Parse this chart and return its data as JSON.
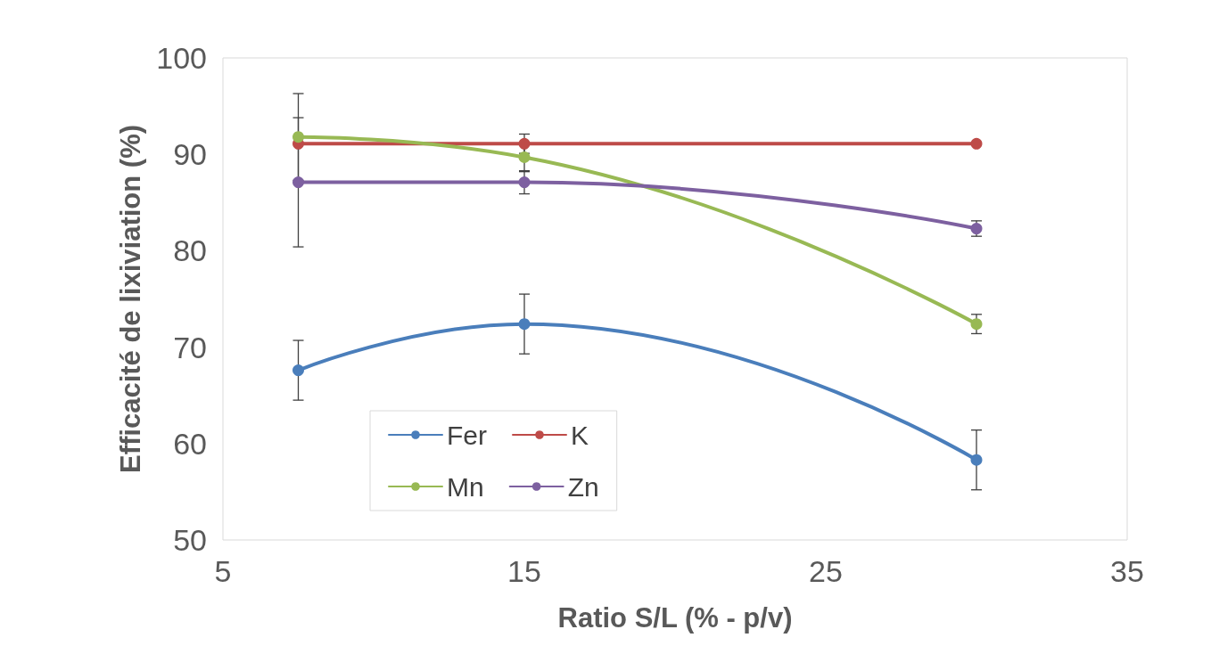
{
  "chart_data": {
    "type": "line",
    "xlabel": "Ratio S/L (% - p/v)",
    "ylabel": "Efficacité de lixiviation (%)",
    "x": [
      7.5,
      15,
      30
    ],
    "series": [
      {
        "name": "Fer",
        "color": "#4a7ebb",
        "values": [
          67.6,
          72.4,
          58.3
        ],
        "errors": [
          3.1,
          3.1,
          3.1
        ]
      },
      {
        "name": "K",
        "color": "#be4b48",
        "values": [
          91.1,
          91.1,
          91.1
        ],
        "errors": [
          null,
          1.0,
          null
        ]
      },
      {
        "name": "Mn",
        "color": "#98b954",
        "values": [
          91.8,
          89.7,
          72.4
        ],
        "errors": [
          4.5,
          1.5,
          1.0
        ]
      },
      {
        "name": "Zn",
        "color": "#7d60a0",
        "values": [
          87.1,
          87.1,
          82.3
        ],
        "errors": [
          6.7,
          1.2,
          0.8
        ]
      }
    ],
    "xlim": [
      5,
      35
    ],
    "xticks": [
      5,
      15,
      25,
      35
    ],
    "ylim": [
      50,
      100
    ],
    "yticks": [
      50,
      60,
      70,
      80,
      90,
      100
    ],
    "grid": false,
    "legend": "bottom left",
    "marker": "circle",
    "line_style": "solid"
  }
}
